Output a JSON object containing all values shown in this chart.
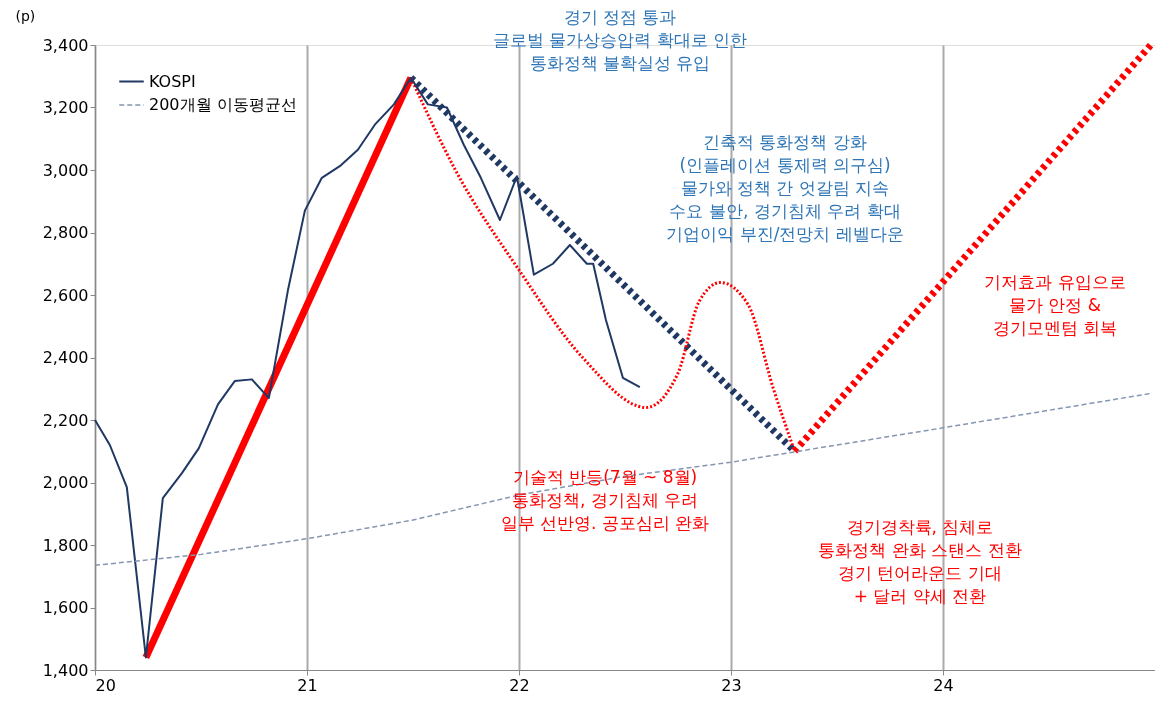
{
  "chart_data": {
    "type": "line",
    "ylabel": "(p)",
    "xlim": [
      20,
      25
    ],
    "xticks": [
      20,
      21,
      22,
      23,
      24
    ],
    "ylim": [
      1400,
      3400
    ],
    "yticks": [
      {
        "value": 1400,
        "label": "1,400"
      },
      {
        "value": 1600,
        "label": "1,600"
      },
      {
        "value": 1800,
        "label": "1,800"
      },
      {
        "value": 2000,
        "label": "2,000"
      },
      {
        "value": 2200,
        "label": "2,200"
      },
      {
        "value": 2400,
        "label": "2,400"
      },
      {
        "value": 2600,
        "label": "2,600"
      },
      {
        "value": 2800,
        "label": "2,800"
      },
      {
        "value": 3000,
        "label": "3,000"
      },
      {
        "value": 3200,
        "label": "3,200"
      },
      {
        "value": 3400,
        "label": "3,400"
      }
    ],
    "grid": "x",
    "legend": "top left",
    "series": [
      {
        "name": "KOSPI",
        "color": "#1f3864",
        "line_style": "solid",
        "x": [
          20.0,
          20.07,
          20.15,
          20.24,
          20.32,
          20.41,
          20.49,
          20.58,
          20.66,
          20.74,
          20.82,
          20.91,
          20.99,
          21.07,
          21.16,
          21.24,
          21.32,
          21.41,
          21.49,
          21.57,
          21.66,
          21.74,
          21.82,
          21.91,
          21.99,
          22.07,
          22.16,
          22.24,
          22.32,
          22.35,
          22.41,
          22.49,
          22.57
        ],
        "values": [
          2200,
          2120,
          1985,
          1440,
          1950,
          2030,
          2110,
          2250,
          2325,
          2330,
          2270,
          2615,
          2870,
          2975,
          3015,
          3065,
          3145,
          3210,
          3295,
          3210,
          3200,
          3080,
          2975,
          2840,
          2980,
          2665,
          2700,
          2760,
          2700,
          2700,
          2520,
          2335,
          2305
        ]
      },
      {
        "name": "200개월 이동평균선",
        "color": "#8496b0",
        "line_style": "dashed",
        "x": [
          20.0,
          20.5,
          21.0,
          21.5,
          22.0,
          22.5,
          23.0,
          23.5,
          24.0,
          24.98
        ],
        "values": [
          1735,
          1770,
          1820,
          1880,
          1960,
          2020,
          2065,
          2120,
          2175,
          2285
        ]
      },
      {
        "color": "#ff0000",
        "line_style": "solid",
        "x": [
          20.24,
          21.49
        ],
        "values": [
          1440,
          3295
        ]
      },
      {
        "color": "#203864",
        "line_style": "dotted",
        "x": [
          21.49,
          23.3
        ],
        "values": [
          3295,
          2100
        ]
      },
      {
        "color": "#ff0000",
        "line_style": "dotted",
        "x": [
          21.49,
          21.7,
          22.0,
          22.3,
          22.6,
          22.75,
          22.85,
          22.95,
          23.08,
          23.2,
          23.3
        ],
        "values": [
          3295,
          3000,
          2680,
          2400,
          2240,
          2350,
          2580,
          2640,
          2570,
          2300,
          2100
        ]
      },
      {
        "color": "#ff0000",
        "line_style": "dotted",
        "x": [
          23.3,
          24.98
        ],
        "values": [
          2100,
          3400
        ]
      }
    ],
    "annotations": [
      "경기 정점 통과\n글로벌 물가상승압력 확대로 인한\n통화정책 불확실성 유입",
      "긴축적 통화정책 강화\n(인플레이션 통제력 의구심)\n물가와 정책 간 엇갈림 지속\n수요 불안, 경기침체 우려 확대\n기업이익 부진/전망치 레벨다운",
      "기술적 반등(7월 ~ 8월)\n통화정책, 경기침체 우려\n일부 선반영. 공포심리 완화",
      "경기경착륙, 침체로\n통화정책 완화 스탠스 전환\n경기 턴어라운드 기대\n+ 달러 약세 전환",
      "기저효과 유입으로\n물가 안정 &\n경기모멘텀 회복"
    ]
  }
}
